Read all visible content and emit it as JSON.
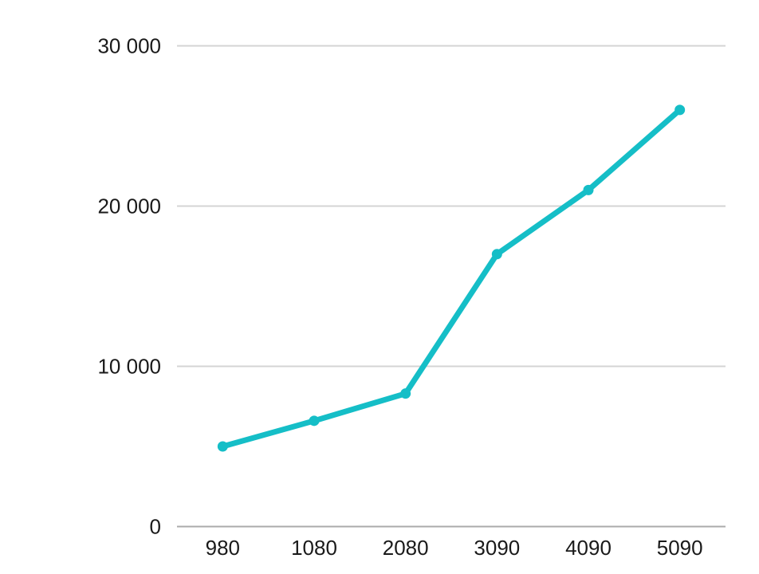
{
  "chart_data": {
    "type": "line",
    "categories": [
      "980",
      "1080",
      "2080",
      "3090",
      "4090",
      "5090"
    ],
    "values": [
      5000,
      6600,
      8300,
      17000,
      21000,
      26000
    ],
    "xlabel": "",
    "ylabel": "",
    "ylim": [
      0,
      30000
    ],
    "y_ticks": [
      {
        "value": 0,
        "label": "0"
      },
      {
        "value": 10000,
        "label": "10 000"
      },
      {
        "value": 20000,
        "label": "20 000"
      },
      {
        "value": 30000,
        "label": "30 000"
      }
    ],
    "grid": true,
    "legend": "none",
    "marker": "circle",
    "colors": {
      "line": "#15bec7",
      "point": "#15bec7",
      "gridline": "#d4d4d4",
      "axis_line": "#ababab",
      "tick_text": "#1a1a1a",
      "background": "#ffffff"
    }
  }
}
